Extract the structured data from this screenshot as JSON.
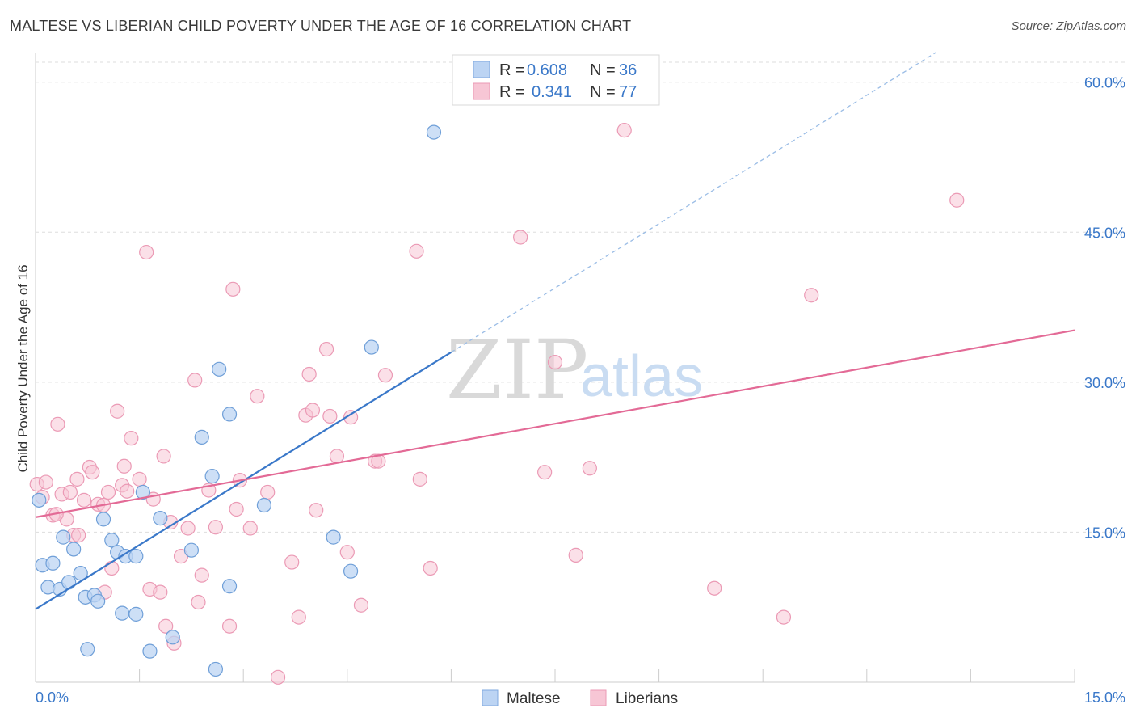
{
  "title": "MALTESE VS LIBERIAN CHILD POVERTY UNDER THE AGE OF 16 CORRELATION CHART",
  "source": "Source: ZipAtlas.com",
  "watermark": {
    "zip": "ZIP",
    "atlas": "atlas"
  },
  "colors": {
    "blue": "#3a78c9",
    "blue_fill": "#bcd4f3",
    "pink": "#e36a96",
    "pink_fill": "#f7c6d5",
    "grid": "#dddddd"
  },
  "legend": {
    "rows": [
      {
        "r_label": "R =",
        "r_value": "0.608",
        "n_label": "N =",
        "n_value": "36"
      },
      {
        "r_label": "R =",
        "r_value": "0.341",
        "n_label": "N =",
        "n_value": "77"
      }
    ]
  },
  "bottom_legend": [
    "Maltese",
    "Liberians"
  ],
  "chart_data": {
    "type": "scatter",
    "title": "MALTESE VS LIBERIAN CHILD POVERTY UNDER THE AGE OF 16 CORRELATION CHART",
    "xlabel": "",
    "ylabel": "Child Poverty Under the Age of 16",
    "xlim": [
      0,
      15
    ],
    "ylim": [
      0,
      62
    ],
    "x_tick_labels": [
      "0.0%",
      "15.0%"
    ],
    "y_tick_labels": [
      "15.0%",
      "30.0%",
      "45.0%",
      "60.0%"
    ],
    "y_ticks": [
      15,
      30,
      45,
      60
    ],
    "grid": true,
    "legend_position": "top-center",
    "series": [
      {
        "name": "Maltese",
        "color": "#3a78c9",
        "r": 0.608,
        "n": 36,
        "trend": {
          "x0": 0,
          "y0": 7.3,
          "x1": 6.0,
          "y1": 33.0,
          "dashed_to_x": 13.0
        },
        "points": [
          [
            0.05,
            18.2
          ],
          [
            0.1,
            11.7
          ],
          [
            0.25,
            11.9
          ],
          [
            0.18,
            9.5
          ],
          [
            0.35,
            9.3
          ],
          [
            0.4,
            14.5
          ],
          [
            0.55,
            13.3
          ],
          [
            0.48,
            10.0
          ],
          [
            0.65,
            10.9
          ],
          [
            0.72,
            8.5
          ],
          [
            0.85,
            8.7
          ],
          [
            0.9,
            8.1
          ],
          [
            0.98,
            16.3
          ],
          [
            1.1,
            14.2
          ],
          [
            1.18,
            13.0
          ],
          [
            1.3,
            12.6
          ],
          [
            1.45,
            12.6
          ],
          [
            1.25,
            6.9
          ],
          [
            1.45,
            6.8
          ],
          [
            0.75,
            3.3
          ],
          [
            1.65,
            3.1
          ],
          [
            1.55,
            19.0
          ],
          [
            1.8,
            16.4
          ],
          [
            1.98,
            4.5
          ],
          [
            2.25,
            13.2
          ],
          [
            2.4,
            24.5
          ],
          [
            2.55,
            20.6
          ],
          [
            2.65,
            31.3
          ],
          [
            2.8,
            26.8
          ],
          [
            2.6,
            1.3
          ],
          [
            2.8,
            9.6
          ],
          [
            3.3,
            17.7
          ],
          [
            4.3,
            14.5
          ],
          [
            4.55,
            11.1
          ],
          [
            4.85,
            33.5
          ],
          [
            5.75,
            55.0
          ]
        ]
      },
      {
        "name": "Liberians",
        "color": "#e36a96",
        "r": 0.341,
        "n": 77,
        "trend": {
          "x0": 0,
          "y0": 16.5,
          "x1": 15.0,
          "y1": 35.2
        },
        "points": [
          [
            0.02,
            19.8
          ],
          [
            0.1,
            18.5
          ],
          [
            0.15,
            20.0
          ],
          [
            0.25,
            16.7
          ],
          [
            0.32,
            25.8
          ],
          [
            0.38,
            18.8
          ],
          [
            0.45,
            16.3
          ],
          [
            0.5,
            19.0
          ],
          [
            0.55,
            14.7
          ],
          [
            0.6,
            20.3
          ],
          [
            0.62,
            14.7
          ],
          [
            0.7,
            18.2
          ],
          [
            0.78,
            21.5
          ],
          [
            0.82,
            21.0
          ],
          [
            0.9,
            17.8
          ],
          [
            0.98,
            17.7
          ],
          [
            1.05,
            19.0
          ],
          [
            1.1,
            11.4
          ],
          [
            1.18,
            27.1
          ],
          [
            1.25,
            19.7
          ],
          [
            1.28,
            21.6
          ],
          [
            1.32,
            19.1
          ],
          [
            1.38,
            24.4
          ],
          [
            1.5,
            20.3
          ],
          [
            1.6,
            43.0
          ],
          [
            1.65,
            9.3
          ],
          [
            1.7,
            18.3
          ],
          [
            1.8,
            9.0
          ],
          [
            1.85,
            22.6
          ],
          [
            1.88,
            5.6
          ],
          [
            1.95,
            16.0
          ],
          [
            2.0,
            3.9
          ],
          [
            2.1,
            12.6
          ],
          [
            2.2,
            15.4
          ],
          [
            2.3,
            30.2
          ],
          [
            2.35,
            8.0
          ],
          [
            2.4,
            10.7
          ],
          [
            2.5,
            19.2
          ],
          [
            2.6,
            15.5
          ],
          [
            2.8,
            5.6
          ],
          [
            2.85,
            39.3
          ],
          [
            2.9,
            17.3
          ],
          [
            2.95,
            20.2
          ],
          [
            3.1,
            15.4
          ],
          [
            3.2,
            28.6
          ],
          [
            3.35,
            19.0
          ],
          [
            3.5,
            0.5
          ],
          [
            3.7,
            12.0
          ],
          [
            3.8,
            6.5
          ],
          [
            3.9,
            26.7
          ],
          [
            3.95,
            30.8
          ],
          [
            4.0,
            27.2
          ],
          [
            4.05,
            17.2
          ],
          [
            4.2,
            33.3
          ],
          [
            4.25,
            26.6
          ],
          [
            4.35,
            22.6
          ],
          [
            4.5,
            13.0
          ],
          [
            4.55,
            26.5
          ],
          [
            4.7,
            7.7
          ],
          [
            4.9,
            22.1
          ],
          [
            4.95,
            22.1
          ],
          [
            5.05,
            30.7
          ],
          [
            5.5,
            43.1
          ],
          [
            5.55,
            20.3
          ],
          [
            5.7,
            11.4
          ],
          [
            7.0,
            44.5
          ],
          [
            7.35,
            21.0
          ],
          [
            7.5,
            32.0
          ],
          [
            7.8,
            12.7
          ],
          [
            8.0,
            21.4
          ],
          [
            8.5,
            55.2
          ],
          [
            9.8,
            9.4
          ],
          [
            10.8,
            6.5
          ],
          [
            11.2,
            38.7
          ],
          [
            13.3,
            48.2
          ],
          [
            0.3,
            16.8
          ],
          [
            1.0,
            9.0
          ]
        ]
      }
    ]
  }
}
